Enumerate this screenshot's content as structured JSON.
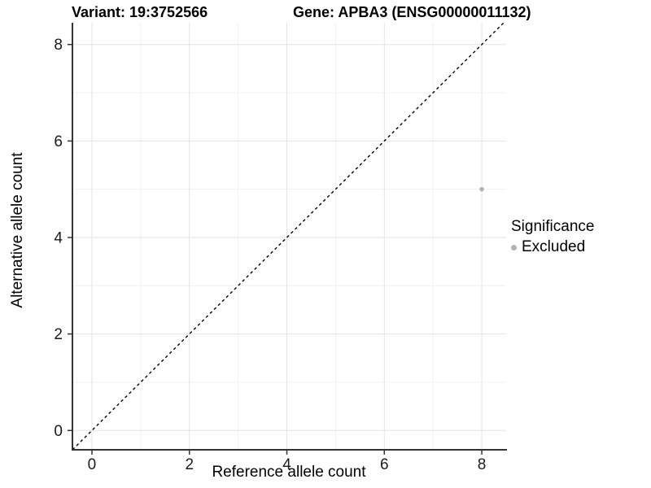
{
  "chart_data": {
    "type": "scatter",
    "title_parts": [
      "Variant: 19:3752566",
      "Gene: APBA3 (ENSG00000011132)"
    ],
    "xlabel": "Reference allele count",
    "ylabel": "Alternative allele count",
    "xlim": [
      -0.4,
      8.5
    ],
    "ylim": [
      -0.4,
      8.45
    ],
    "xticks": [
      0,
      2,
      4,
      6,
      8
    ],
    "yticks": [
      0,
      2,
      4,
      6,
      8
    ],
    "xticks_minor": [
      1,
      3,
      5,
      7
    ],
    "yticks_minor": [
      1,
      3,
      5,
      7
    ],
    "grid": "major+minor",
    "reference_line": {
      "kind": "identity",
      "slope": 1,
      "intercept": 0,
      "style": "dashed",
      "color": "#000000"
    },
    "series": [
      {
        "name": "Excluded",
        "color": "#b3b3b3",
        "points": [
          {
            "x": 8,
            "y": 5
          }
        ]
      }
    ],
    "legend": {
      "title": "Significance",
      "position": "right",
      "entries": [
        {
          "label": "Excluded",
          "color": "#b3b3b3"
        }
      ]
    },
    "colors": {
      "axis_line": "#333333",
      "tick_mark": "#333333",
      "tick_label": "#1a1a1a",
      "grid_major": "#e3e3e3",
      "grid_minor": "#f0f0f0",
      "background": "#ffffff"
    }
  }
}
